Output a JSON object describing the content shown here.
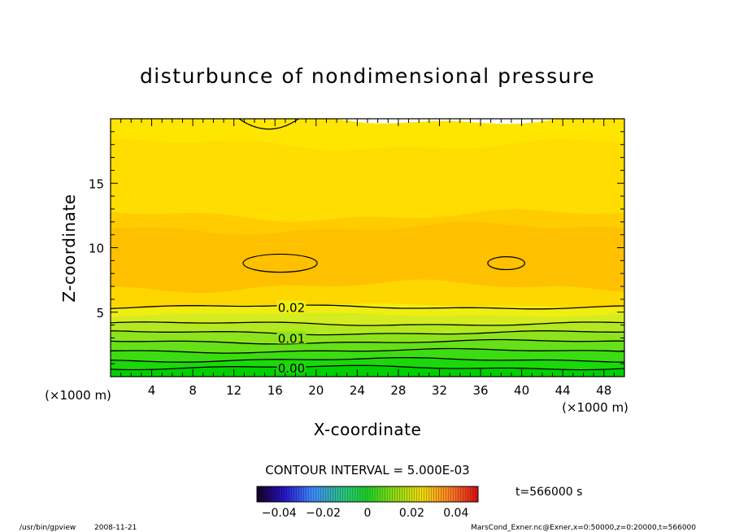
{
  "chart_data": {
    "type": "heatmap",
    "title": "disturbunce of nondimensional pressure",
    "xlabel": "X-coordinate",
    "ylabel": "Z-coordinate",
    "x_unit_left": "(×1000 m)",
    "x_unit_right": "(×1000 m)",
    "xlim": [
      0,
      50
    ],
    "ylim": [
      0,
      20
    ],
    "x_ticks": [
      "4",
      "8",
      "12",
      "16",
      "20",
      "24",
      "28",
      "32",
      "36",
      "40",
      "44",
      "48"
    ],
    "y_ticks": [
      "5",
      "10",
      "15"
    ],
    "contour_labels": [
      "0.02",
      "0.01",
      "0.00"
    ],
    "bands": [
      {
        "z_top": 0.7,
        "value": -0.002,
        "color": "#00d000"
      },
      {
        "z_top": 1.3,
        "value": 0.0,
        "color": "#1ad80a"
      },
      {
        "z_top": 2.0,
        "value": 0.003,
        "color": "#3cdc12"
      },
      {
        "z_top": 2.7,
        "value": 0.006,
        "color": "#66e018"
      },
      {
        "z_top": 3.4,
        "value": 0.009,
        "color": "#8ee41c"
      },
      {
        "z_top": 4.1,
        "value": 0.012,
        "color": "#b4e820"
      },
      {
        "z_top": 4.8,
        "value": 0.015,
        "color": "#d4ec20"
      },
      {
        "z_top": 5.5,
        "value": 0.018,
        "color": "#f0ee10"
      },
      {
        "z_top": 7.0,
        "value": 0.021,
        "color": "#ffd700"
      },
      {
        "z_top": 11.5,
        "value": 0.024,
        "color": "#ffc000"
      },
      {
        "z_top": 12.5,
        "value": 0.022,
        "color": "#ffcc00"
      },
      {
        "z_top": 18.0,
        "value": 0.02,
        "color": "#ffdd00"
      },
      {
        "z_top": 20.0,
        "value": 0.019,
        "color": "#ffe600"
      }
    ],
    "contour_lines_z": [
      0.7,
      1.3,
      2.0,
      2.7,
      3.4,
      4.1,
      5.4
    ],
    "closed_contours": [
      {
        "cx": 16.5,
        "cz": 8.8,
        "rx": 3.6,
        "rz": 0.7
      },
      {
        "cx": 38.5,
        "cz": 8.8,
        "rx": 1.8,
        "rz": 0.5
      }
    ],
    "top_contour": {
      "x_start": 12.5,
      "x_end": 18.3,
      "z_min": 18.9
    },
    "colorbar": {
      "ticks": [
        "−0.04",
        "−0.02",
        "0",
        "0.02",
        "0.04"
      ],
      "range": [
        -0.05,
        0.05
      ]
    }
  },
  "footer": {
    "contour_interval": "CONTOUR INTERVAL = 5.000E-03",
    "time": "t=566000 s",
    "program": "/usr/bin/gpview",
    "date": "2008-11-21",
    "source": "MarsCond_Exner.nc@Exner,x=0:50000,z=0:20000,t=566000"
  }
}
